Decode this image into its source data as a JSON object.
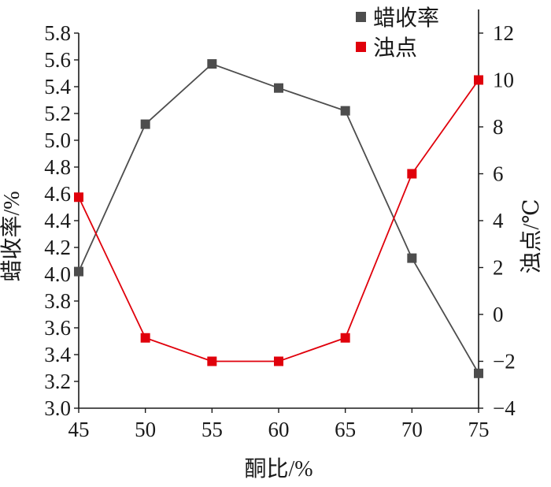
{
  "chart_data": {
    "type": "line",
    "x": [
      45,
      50,
      55,
      60,
      65,
      70,
      75
    ],
    "xlabel": "酮比/%",
    "xlim": [
      45,
      75
    ],
    "xticks": [
      "45",
      "50",
      "55",
      "60",
      "65",
      "70",
      "75"
    ],
    "y_left": {
      "label": "蜡收率/%",
      "lim": [
        3.0,
        5.8
      ],
      "ticks": [
        "3.0",
        "3.2",
        "3.4",
        "3.6",
        "3.8",
        "4.0",
        "4.2",
        "4.4",
        "4.6",
        "4.8",
        "5.0",
        "5.2",
        "5.4",
        "5.6",
        "5.8"
      ]
    },
    "y_right": {
      "label": "浊点/℃",
      "lim": [
        -4,
        12
      ],
      "ticks": [
        "-4",
        "-2",
        "0",
        "2",
        "4",
        "6",
        "8",
        "10",
        "12"
      ]
    },
    "series": [
      {
        "name": "蜡收率",
        "axis": "left",
        "color": "#4d4d4d",
        "marker": "square",
        "values": [
          4.02,
          5.12,
          5.57,
          5.39,
          5.22,
          4.12,
          3.26
        ]
      },
      {
        "name": "浊点",
        "axis": "right",
        "color": "#e0000b",
        "marker": "square",
        "values": [
          5,
          -1,
          -2,
          -2,
          -1,
          6,
          10
        ]
      }
    ],
    "legend": "top-right",
    "grid": false
  }
}
